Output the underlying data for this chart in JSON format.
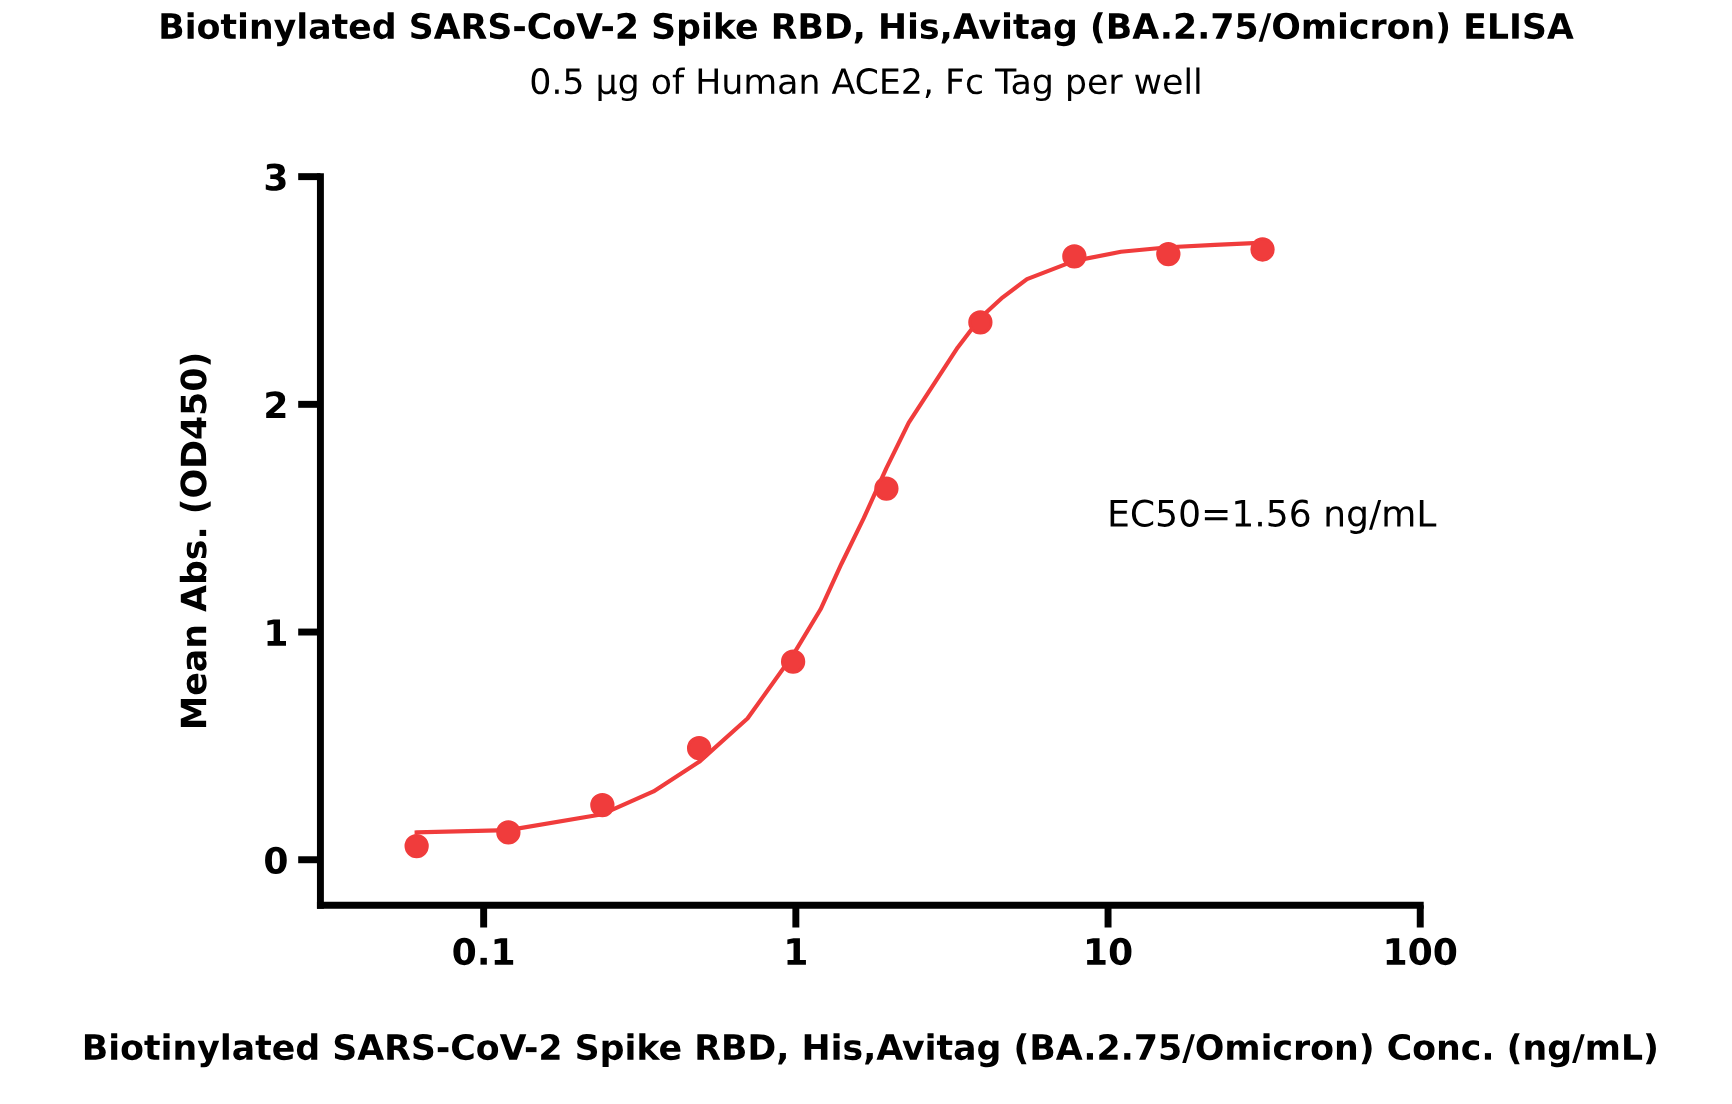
{
  "chart_data": {
    "type": "scatter",
    "title": "Biotinylated SARS-CoV-2 Spike RBD, His,Avitag (BA.2.75/Omicron) ELISA",
    "subtitle": "0.5 μg of Human ACE2, Fc Tag per well",
    "xlabel": "Biotinylated SARS-CoV-2 Spike RBD, His,Avitag (BA.2.75/Omicron) Conc. (ng/mL)",
    "ylabel": "Mean Abs. (OD450)",
    "annotations": [
      "EC50=1.56 ng/mL"
    ],
    "series": [
      {
        "color": "#f03c3c",
        "marker": "circle",
        "x": [
          0.061,
          0.12,
          0.24,
          0.49,
          0.98,
          1.95,
          3.9,
          7.8,
          15.6,
          31.25
        ],
        "values": [
          0.06,
          0.12,
          0.24,
          0.49,
          0.87,
          1.63,
          2.36,
          2.65,
          2.66,
          2.68
        ]
      },
      {
        "type": "line",
        "color": "#f03c3c",
        "x": [
          0.061,
          0.12,
          0.24,
          0.35,
          0.49,
          0.7,
          0.98,
          1.2,
          1.4,
          1.65,
          1.95,
          2.3,
          2.8,
          3.3,
          3.9,
          4.6,
          5.5,
          7.8,
          11,
          15.6,
          22,
          31.25
        ],
        "values": [
          0.12,
          0.13,
          0.2,
          0.3,
          0.43,
          0.62,
          0.9,
          1.1,
          1.3,
          1.5,
          1.72,
          1.92,
          2.1,
          2.25,
          2.38,
          2.47,
          2.55,
          2.63,
          2.67,
          2.69,
          2.7,
          2.71
        ]
      }
    ],
    "log": "x",
    "xlim": [
      0.03,
      100
    ],
    "xticks": [
      0.1,
      1,
      10,
      100
    ],
    "ylim": [
      -0.2,
      3
    ],
    "yticks": [
      0,
      1,
      2,
      3
    ],
    "grid": false,
    "legend": false
  }
}
